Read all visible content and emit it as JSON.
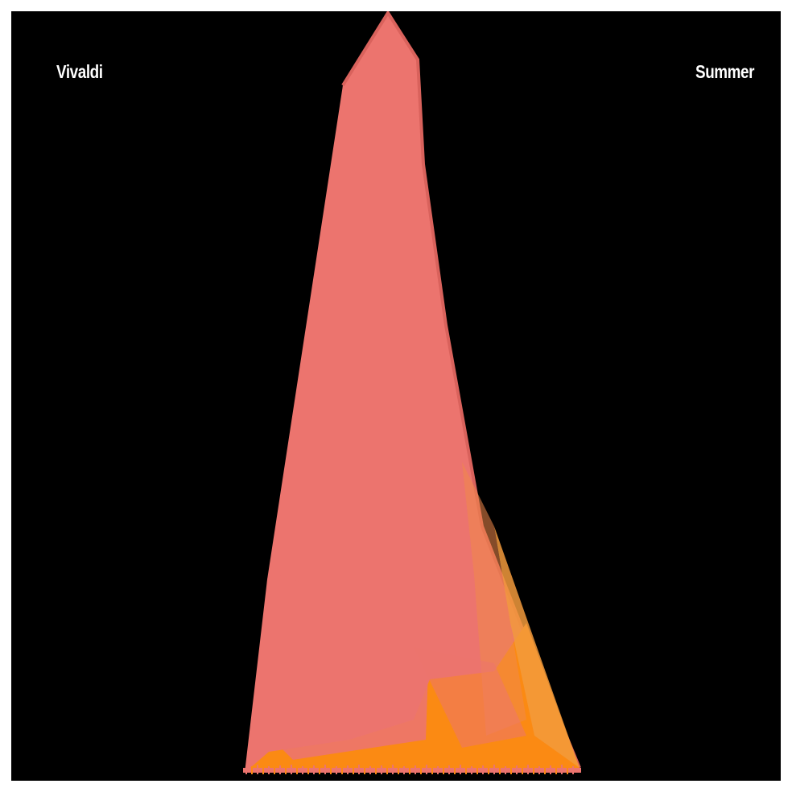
{
  "cover": {
    "composer": "Vivaldi",
    "season": "Summer"
  },
  "colors": {
    "background": "#000000",
    "frame": "#ffffff",
    "text": "#ffffff",
    "primary": "#ec746e",
    "secondary": "#fb8a13",
    "shadow": "#8a3d3a"
  }
}
